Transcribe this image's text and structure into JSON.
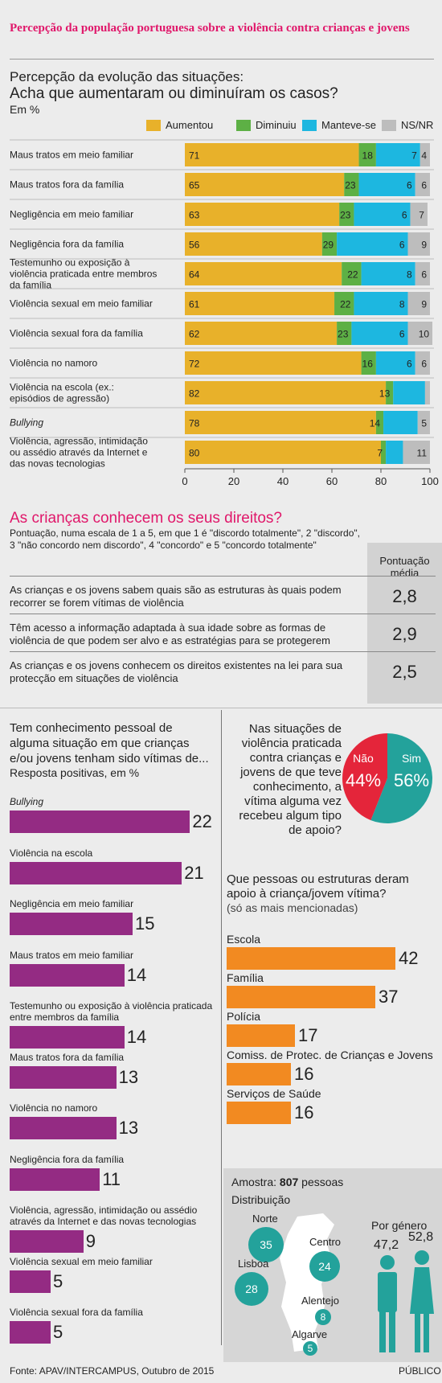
{
  "title": "Percepção da população portuguesa sobre a violência contra crianças e jovens",
  "sec1": {
    "h1": "Percepção da evolução das situações:",
    "h2": "Acha que aumentaram ou diminuíram os casos?",
    "h3": "Em %"
  },
  "chart_data": [
    {
      "type": "bar",
      "stacked": true,
      "orientation": "horizontal",
      "categories": [
        "Maus tratos em meio familiar",
        "Maus tratos fora da família",
        "Negligência em meio familiar",
        "Negligência fora da família",
        "Testemunho ou exposição à violência praticada entre membros da família",
        "Violência sexual em meio familiar",
        "Violência sexual fora da família",
        "Violência no namoro",
        "Violência na escola (ex.: episódios de agressão)",
        "Bullying",
        "Violência, agressão, intimidação ou assédio através da Internet e das novas tecnologias"
      ],
      "series": [
        {
          "name": "Aumentou",
          "color": "#e8b12a",
          "values": [
            71,
            65,
            63,
            56,
            64,
            61,
            62,
            72,
            82,
            78,
            80
          ]
        },
        {
          "name": "Diminuiu",
          "color": "#5db045",
          "values": [
            7,
            6,
            6,
            6,
            8,
            8,
            6,
            6,
            3,
            3,
            2
          ]
        },
        {
          "name": "Manteve-se",
          "color": "#1db7e0",
          "values": [
            18,
            23,
            23,
            29,
            22,
            22,
            23,
            16,
            13,
            14,
            7
          ]
        },
        {
          "name": "NS/NR",
          "color": "#bdbdbd",
          "values": [
            4,
            6,
            7,
            9,
            6,
            9,
            10,
            6,
            2,
            5,
            11
          ]
        }
      ],
      "segment_labels": [
        [
          "71",
          "18",
          "7",
          "4"
        ],
        [
          "65",
          "23",
          "6",
          "6"
        ],
        [
          "63",
          "23",
          "6",
          "7"
        ],
        [
          "56",
          "29",
          "6",
          "9"
        ],
        [
          "64",
          "22",
          "8",
          "6"
        ],
        [
          "61",
          "22",
          "8",
          "9"
        ],
        [
          "62",
          "23",
          "6",
          "10"
        ],
        [
          "72",
          "16",
          "6",
          "6"
        ],
        [
          "82",
          "13",
          "",
          ""
        ],
        [
          "78",
          "14",
          "",
          "5"
        ],
        [
          "80",
          "7",
          "",
          "11"
        ]
      ],
      "xticks": [
        "0",
        "20",
        "40",
        "60",
        "80",
        "100"
      ],
      "xlim": [
        0,
        100
      ]
    },
    {
      "type": "table",
      "title": "As crianças conhecem os seus direitos?",
      "note": "Pontuação, numa escala de 1 a 5, em que 1 é \"discordo totalmente\", 2 \"discordo\", 3 \"não concordo nem discordo\", 4 \"concordo\" e 5 \"concordo totalmente\"",
      "column_header": "Pontuação média",
      "rows": [
        {
          "label": "As crianças e os jovens sabem quais são as estruturas às quais podem recorrer se forem vítimas de violência",
          "value": "2,8"
        },
        {
          "label": "Têm acesso a informação adaptada à sua idade sobre as formas de violência de que podem ser alvo e as estratégias para se protegerem",
          "value": "2,9"
        },
        {
          "label": "As crianças e os jovens conhecem os direitos existentes na lei para sua protecção em situações de violência",
          "value": "2,5"
        }
      ]
    },
    {
      "type": "bar",
      "orientation": "horizontal",
      "color": "#942b83",
      "title": "Tem conhecimento pessoal de alguma situação em que crianças e/ou jovens tenham sido vítimas de...",
      "subtitle": "Resposta positivas, em %",
      "categories": [
        "Bullying",
        "Violência na escola",
        "Negligência em meio familiar",
        "Maus tratos em meio familiar",
        "Testemunho ou exposição à violência praticada entre membros da família",
        "Maus tratos fora da família",
        "Violência no namoro",
        "Negligência fora da família",
        "Violência, agressão, intimidação ou assédio através da Internet e das novas tecnologias",
        "Violência sexual em meio familiar",
        "Violência sexual fora da família"
      ],
      "values": [
        22,
        21,
        15,
        14,
        14,
        13,
        13,
        11,
        9,
        5,
        5
      ]
    },
    {
      "type": "pie",
      "title": "Nas situações de violência praticada contra crianças e jovens de que teve conhecimento, a vítima alguma vez recebeu algum tipo de apoio?",
      "slices": [
        {
          "label": "Não",
          "value": 44,
          "display": "44%",
          "color": "#e4253a"
        },
        {
          "label": "Sim",
          "value": 56,
          "display": "56%",
          "color": "#23a29b"
        }
      ]
    },
    {
      "type": "bar",
      "orientation": "horizontal",
      "color": "#f28a21",
      "title": "Que pessoas ou estruturas deram apoio à criança/jovem vítima?",
      "subtitle": "(só as mais mencionadas)",
      "categories": [
        "Escola",
        "Família",
        "Polícia",
        "Comiss. de Protec. de Crianças e Jovens",
        "Serviços de Saúde"
      ],
      "values": [
        42,
        37,
        17,
        16,
        16
      ]
    }
  ],
  "sample": {
    "prefix": "Amostra: ",
    "count": "807",
    "suffix": " pessoas",
    "dist_label": "Distribuição",
    "regions": [
      {
        "name": "Norte",
        "value": "35"
      },
      {
        "name": "Centro",
        "value": "24"
      },
      {
        "name": "Lisboa",
        "value": "28"
      },
      {
        "name": "Alentejo",
        "value": "8"
      },
      {
        "name": "Algarve",
        "value": "5"
      }
    ],
    "gender_label": "Por género",
    "gender_values": [
      "47,2",
      "52,8"
    ],
    "colors": {
      "region": "#23a29b",
      "map": "#ffffff"
    }
  },
  "footer": {
    "source": "Fonte: APAV/INTERCAMPUS, Outubro de 2015",
    "publisher": "PÚBLICO"
  }
}
